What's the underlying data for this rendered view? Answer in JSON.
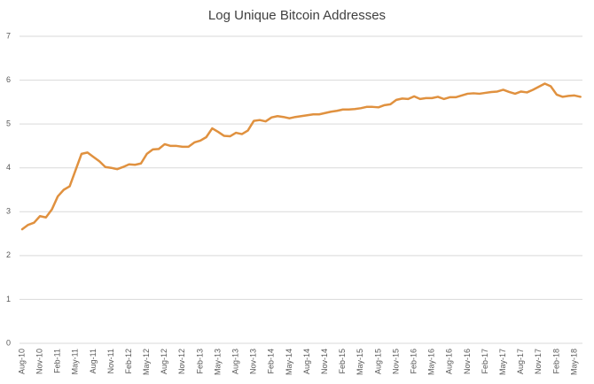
{
  "chart_data": {
    "type": "line",
    "title": "Log Unique Bitcoin Addresses",
    "categories": [
      "Aug-10",
      null,
      null,
      "Nov-10",
      null,
      null,
      "Feb-11",
      null,
      null,
      "May-11",
      null,
      null,
      "Aug-11",
      null,
      null,
      "Nov-11",
      null,
      null,
      "Feb-12",
      null,
      null,
      "May-12",
      null,
      null,
      "Aug-12",
      null,
      null,
      "Nov-12",
      null,
      null,
      "Feb-13",
      null,
      null,
      "May-13",
      null,
      null,
      "Aug-13",
      null,
      null,
      "Nov-13",
      null,
      null,
      "Feb-14",
      null,
      null,
      "May-14",
      null,
      null,
      "Aug-14",
      null,
      null,
      "Nov-14",
      null,
      null,
      "Feb-15",
      null,
      null,
      "May-15",
      null,
      null,
      "Aug-15",
      null,
      null,
      "Nov-15",
      null,
      null,
      "Feb-16",
      null,
      null,
      "May-16",
      null,
      null,
      "Aug-16",
      null,
      null,
      "Nov-16",
      null,
      null,
      "Feb-17",
      null,
      null,
      "May-17",
      null,
      null,
      "Aug-17",
      null,
      null,
      "Nov-17",
      null,
      null,
      "Feb-18",
      null,
      null,
      "May-18",
      null
    ],
    "values": [
      2.6,
      2.7,
      2.75,
      2.9,
      2.87,
      3.05,
      3.35,
      3.5,
      3.58,
      3.95,
      4.32,
      4.35,
      4.25,
      4.15,
      4.02,
      4.0,
      3.97,
      4.02,
      4.08,
      4.07,
      4.1,
      4.32,
      4.42,
      4.43,
      4.54,
      4.5,
      4.5,
      4.48,
      4.48,
      4.58,
      4.62,
      4.7,
      4.9,
      4.82,
      4.73,
      4.72,
      4.8,
      4.77,
      4.85,
      5.07,
      5.09,
      5.06,
      5.15,
      5.18,
      5.16,
      5.13,
      5.16,
      5.18,
      5.2,
      5.22,
      5.22,
      5.25,
      5.28,
      5.3,
      5.33,
      5.33,
      5.34,
      5.36,
      5.39,
      5.39,
      5.38,
      5.43,
      5.45,
      5.55,
      5.58,
      5.57,
      5.63,
      5.57,
      5.59,
      5.59,
      5.62,
      5.57,
      5.61,
      5.61,
      5.65,
      5.69,
      5.7,
      5.69,
      5.71,
      5.73,
      5.74,
      5.78,
      5.73,
      5.69,
      5.74,
      5.72,
      5.78,
      5.85,
      5.92,
      5.86,
      5.67,
      5.62,
      5.64,
      5.65,
      5.62
    ],
    "color": "#e0913f",
    "ylim": [
      0,
      7
    ],
    "yticks": [
      0,
      1,
      2,
      3,
      4,
      5,
      6,
      7
    ],
    "grid": true
  }
}
